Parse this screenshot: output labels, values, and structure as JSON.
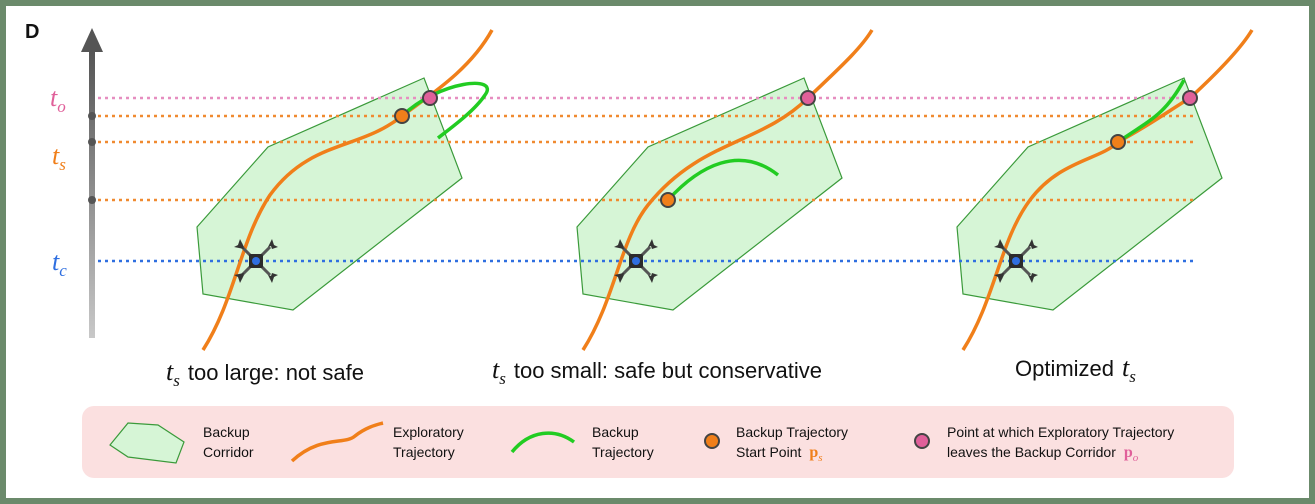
{
  "panel_label": "D",
  "axis": {
    "t_o": {
      "base": "t",
      "sub": "o",
      "color": "#e0609a"
    },
    "t_s": {
      "base": "t",
      "sub": "s",
      "color": "#f07f1a"
    },
    "t_c": {
      "base": "t",
      "sub": "c",
      "color": "#2f6fe0"
    }
  },
  "captions": {
    "left": {
      "math_base": "t",
      "math_sub": "s",
      "text": "too large: not safe"
    },
    "middle": {
      "math_base": "t",
      "math_sub": "s",
      "text": "too small: safe but conservative"
    },
    "right": {
      "prefix": "Optimized",
      "math_base": "t",
      "math_sub": "s"
    }
  },
  "legend": {
    "corridor": {
      "line1": "Backup",
      "line2": "Corridor"
    },
    "exploratory": {
      "line1": "Exploratory",
      "line2": "Trajectory"
    },
    "backup": {
      "line1": "Backup",
      "line2": "Trajectory"
    },
    "start_point": {
      "line1": "Backup Trajectory",
      "line2": "Start Point",
      "sym_base": "p",
      "sym_sub": "s"
    },
    "leave_point": {
      "line1": "Point at which Exploratory Trajectory",
      "line2": "leaves the Backup Corridor",
      "sym_base": "p",
      "sym_sub": "o"
    }
  },
  "colors": {
    "frame": "#6b8a6b",
    "corridor_fill": "#d6f5d6",
    "corridor_stroke": "#3a9a3a",
    "exploratory": "#f07f1a",
    "backup": "#22cc22",
    "start_point": "#f07f1a",
    "leave_point": "#e0609a",
    "t_o_line": "#e68ec0",
    "t_s_line": "#f08a30",
    "t_c_line": "#2f6fe0",
    "legend_bg": "#fbe0e0"
  }
}
